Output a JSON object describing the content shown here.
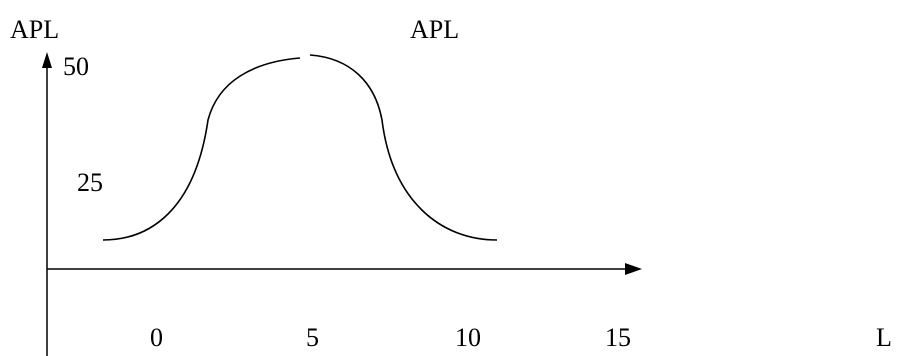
{
  "chart_data": {
    "type": "line",
    "title": "APL",
    "ylabel": "APL",
    "xlabel": "L",
    "x_ticks": [
      "0",
      "5",
      "10",
      "15"
    ],
    "y_ticks": [
      "25",
      "50"
    ],
    "xlim": [
      0,
      15
    ],
    "ylim": [
      0,
      50
    ],
    "grid": false,
    "series": [
      {
        "x": [
          -1.8,
          0,
          1.5,
          2.5,
          4.5,
          5.3,
          7.5,
          8.5,
          10,
          11.8
        ],
        "y": [
          10,
          14,
          25,
          40,
          49,
          49,
          40,
          25,
          14,
          10
        ]
      }
    ]
  },
  "colors": {
    "line": "#000000",
    "background": "#ffffff"
  }
}
